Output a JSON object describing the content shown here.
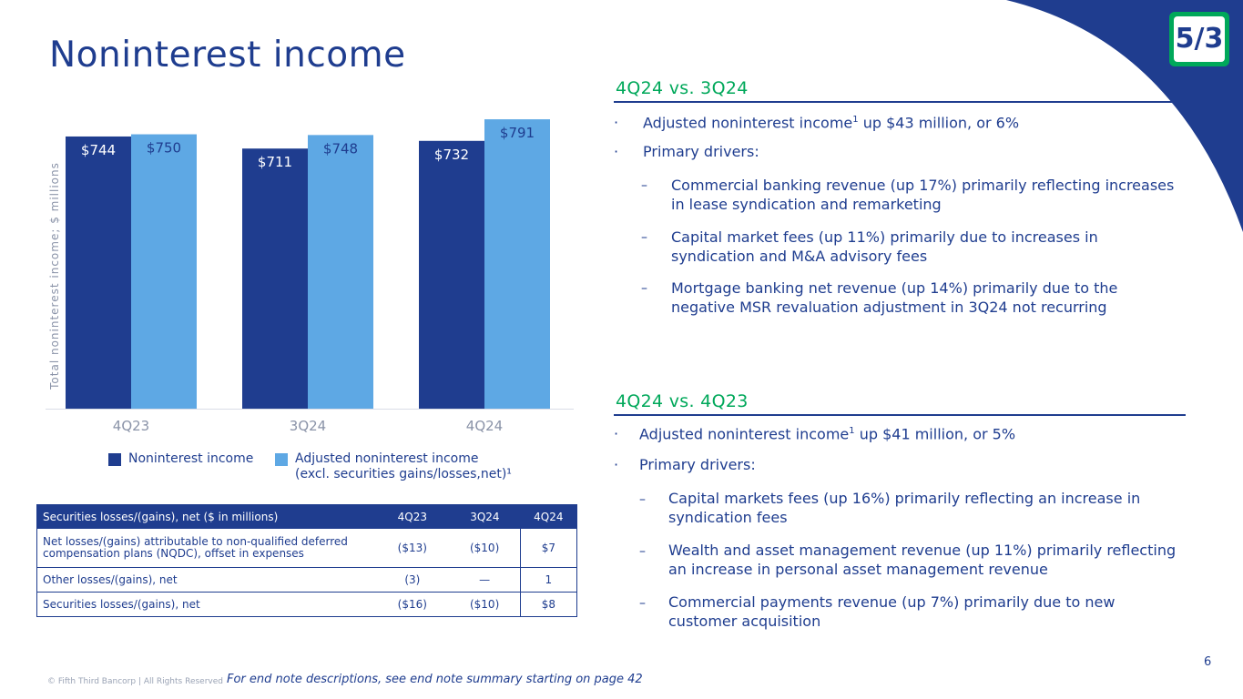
{
  "title": "Noninterest income",
  "colors": {
    "navy": "#1f3d8f",
    "light_blue": "#5ea8e4",
    "green": "#00a85a"
  },
  "logo_text": "5/3",
  "chart_data": {
    "type": "bar",
    "categories": [
      "4Q23",
      "3Q24",
      "4Q24"
    ],
    "series": [
      {
        "name": "Noninterest income",
        "values": [
          744,
          711,
          732
        ],
        "labels": [
          "$744",
          "$711",
          "$732"
        ],
        "color": "#1f3d8f"
      },
      {
        "name": "Adjusted noninterest income (excl. securities gains/losses,net)¹",
        "values": [
          750,
          748,
          791
        ],
        "labels": [
          "$750",
          "$748",
          "$791"
        ],
        "color": "#5ea8e4"
      }
    ],
    "ylabel": "Total noninterest income; $ millions",
    "ylim": [
      0,
      826
    ]
  },
  "legend": {
    "item1": "Noninterest income",
    "item2_line1": "Adjusted noninterest income",
    "item2_line2": "(excl. securities gains/losses,net)¹"
  },
  "table": {
    "header": {
      "label": "Securities losses/(gains), net ($ in millions)",
      "c1": "4Q23",
      "c2": "3Q24",
      "c3": "4Q24"
    },
    "rows": [
      {
        "label": "Net losses/(gains) attributable to non-qualified deferred compensation plans (NQDC), offset in expenses",
        "c1": "($13)",
        "c2": "($10)",
        "c3": "$7"
      },
      {
        "label": "Other losses/(gains), net",
        "c1": "(3)",
        "c2": "—",
        "c3": "1"
      },
      {
        "label": "Securities losses/(gains), net",
        "c1": "($16)",
        "c2": "($10)",
        "c3": "$8"
      }
    ]
  },
  "section1": {
    "header": "4Q24 vs. 3Q24",
    "bullet1_pre": "Adjusted noninterest income",
    "bullet1_sup": "1",
    "bullet1_post": " up $43 million, or 6%",
    "bullet2": "Primary drivers:",
    "sub1_line1": "Commercial banking revenue (up 17%) primarily reflecting increases",
    "sub1_line2": "in lease syndication and remarketing",
    "sub2_line1": "Capital market fees (up 11%) primarily due to increases in",
    "sub2_line2": "syndication and M&A advisory fees",
    "sub3_line1": "Mortgage banking net revenue (up 14%) primarily due to the",
    "sub3_line2": "negative MSR revaluation adjustment in 3Q24 not recurring"
  },
  "section2": {
    "header": "4Q24 vs. 4Q23",
    "bullet1_pre": "Adjusted noninterest income",
    "bullet1_sup": "1",
    "bullet1_post": " up $41 million, or 5%",
    "bullet2": "Primary drivers:",
    "sub1_line1": "Capital markets fees (up 16%) primarily reflecting an increase in",
    "sub1_line2": "syndication fees",
    "sub2_line1": "Wealth and asset management revenue (up 11%) primarily reflecting",
    "sub2_line2": "an increase in personal asset management revenue",
    "sub3_line1": "Commercial payments revenue (up 7%) primarily due to new",
    "sub3_line2": "customer acquisition"
  },
  "bullet_mark": "·",
  "dash_mark": "–",
  "footer": {
    "copyright": "© Fifth Third Bancorp | All Rights Reserved",
    "endnote": "For end note descriptions, see end note summary starting on page 42",
    "page": "6"
  }
}
